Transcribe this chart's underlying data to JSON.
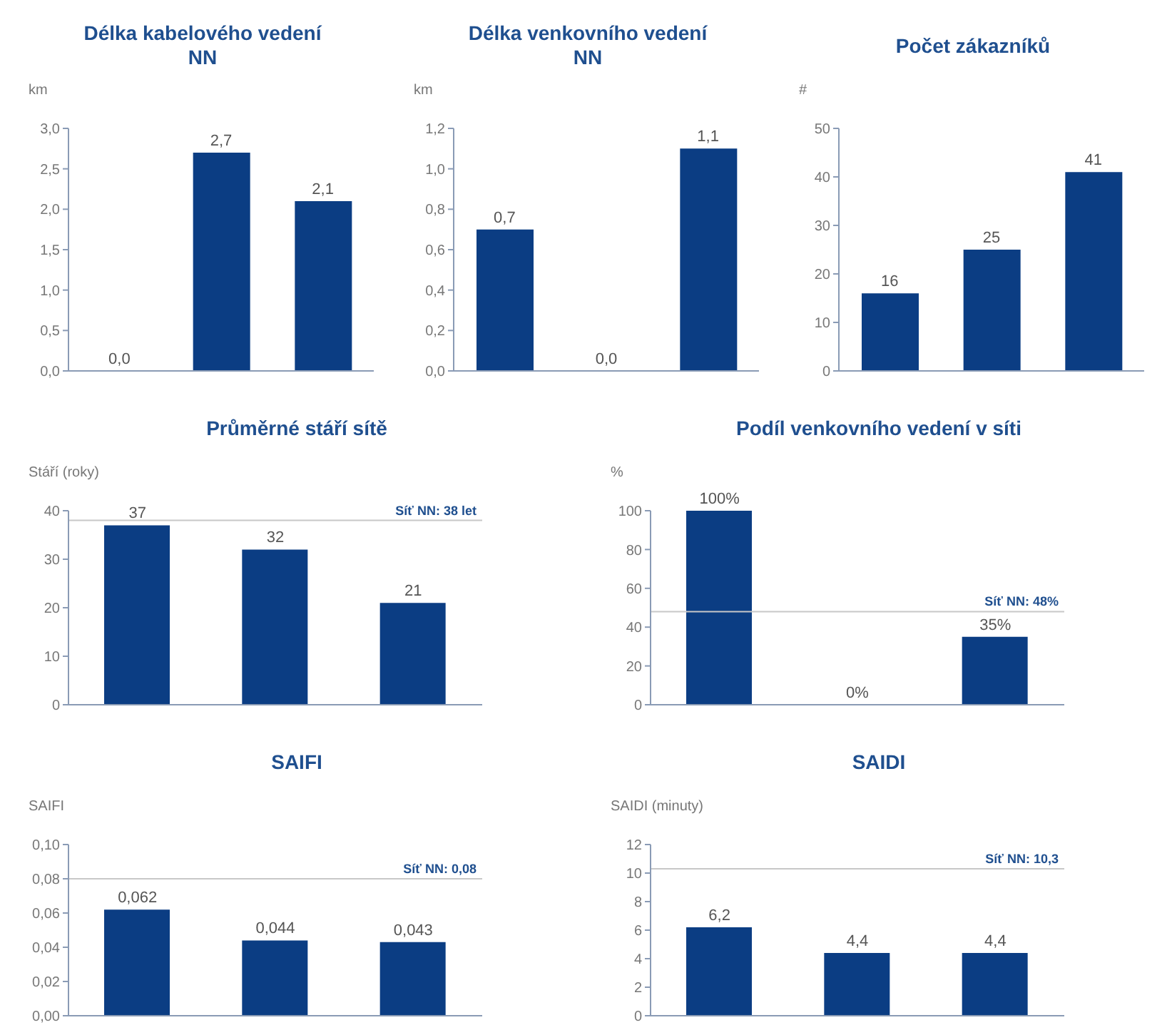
{
  "chart_data": [
    {
      "type": "bar",
      "title": "Délka kabelového vedení NN",
      "ylabel": "km",
      "categories": [
        null,
        null,
        null
      ],
      "values": [
        0.0,
        2.7,
        2.1
      ],
      "value_labels": [
        "0,0",
        "2,7",
        "2,1"
      ],
      "color": "#0b3d83",
      "ylim": [
        0,
        3
      ],
      "yticks": [
        {
          "value": 0,
          "label": "0,0"
        },
        {
          "value": 0.5,
          "label": "0,5"
        },
        {
          "value": 1,
          "label": "1,0"
        },
        {
          "value": 1.5,
          "label": "1,5"
        },
        {
          "value": 2,
          "label": "2,0"
        },
        {
          "value": 2.5,
          "label": "2,5"
        },
        {
          "value": 3,
          "label": "3,0"
        }
      ],
      "grid": false,
      "legend": false
    },
    {
      "type": "bar",
      "title": "Délka venkovního vedení NN",
      "ylabel": "km",
      "categories": [
        null,
        null,
        null
      ],
      "values": [
        0.7,
        0.0,
        1.1
      ],
      "value_labels": [
        "0,7",
        "0,0",
        "1,1"
      ],
      "color": "#0b3d83",
      "ylim": [
        0,
        1.2
      ],
      "yticks": [
        {
          "value": 0,
          "label": "0,0"
        },
        {
          "value": 0.2,
          "label": "0,2"
        },
        {
          "value": 0.4,
          "label": "0,4"
        },
        {
          "value": 0.6,
          "label": "0,6"
        },
        {
          "value": 0.8,
          "label": "0,8"
        },
        {
          "value": 1,
          "label": "1,0"
        },
        {
          "value": 1.2,
          "label": "1,2"
        }
      ],
      "grid": false,
      "legend": false
    },
    {
      "type": "bar",
      "title": "Počet zákazníků",
      "ylabel": "#",
      "categories": [
        null,
        null,
        null
      ],
      "values": [
        16,
        25,
        41
      ],
      "data_labels": true,
      "color": "#0b3d83",
      "ylim": [
        0,
        50
      ],
      "yticks": [
        0,
        10,
        20,
        30,
        40,
        50
      ],
      "grid": false,
      "legend": false
    },
    {
      "type": "bar",
      "title": "Průměrné stáří sítě",
      "ylabel": "Stáří (roky)",
      "categories": [
        null,
        null,
        null
      ],
      "values": [
        37,
        32,
        21
      ],
      "data_labels": true,
      "color": "#0b3d83",
      "ylim": [
        0,
        40
      ],
      "yticks": [
        0,
        10,
        20,
        30,
        40
      ],
      "grid": false,
      "legend": false,
      "ref_lines": [
        {
          "axis": "y",
          "value": 38,
          "label": "Síť NN: 38 let",
          "color": "#c8c8c8"
        }
      ]
    },
    {
      "type": "bar",
      "title": "Podíl venkovního vedení v síti",
      "ylabel": "%",
      "categories": [
        null,
        null,
        null
      ],
      "values": [
        100,
        0,
        35
      ],
      "value_labels": [
        "100%",
        "0%",
        "35%"
      ],
      "color": "#0b3d83",
      "ylim": [
        0,
        100
      ],
      "yticks": [
        0,
        20,
        40,
        60,
        80,
        100
      ],
      "grid": false,
      "legend": false,
      "ref_lines": [
        {
          "axis": "y",
          "value": 48,
          "label": "Síť NN: 48%",
          "color": "#c8c8c8"
        }
      ]
    },
    {
      "type": "bar",
      "title": "SAIFI",
      "ylabel": "SAIFI",
      "categories": [
        null,
        null,
        null
      ],
      "values": [
        0.062,
        0.044,
        0.043
      ],
      "value_labels": [
        "0,062",
        "0,044",
        "0,043"
      ],
      "color": "#0b3d83",
      "ylim": [
        0,
        0.1
      ],
      "yticks": [
        {
          "value": 0,
          "label": "0,00"
        },
        {
          "value": 0.02,
          "label": "0,02"
        },
        {
          "value": 0.04,
          "label": "0,04"
        },
        {
          "value": 0.06,
          "label": "0,06"
        },
        {
          "value": 0.08,
          "label": "0,08"
        },
        {
          "value": 0.1,
          "label": "0,10"
        }
      ],
      "grid": false,
      "legend": false,
      "ref_lines": [
        {
          "axis": "y",
          "value": 0.08,
          "label": "Síť NN: 0,08",
          "color": "#c8c8c8"
        }
      ]
    },
    {
      "type": "bar",
      "title": "SAIDI",
      "ylabel": "SAIDI (minuty)",
      "categories": [
        null,
        null,
        null
      ],
      "values": [
        6.2,
        4.4,
        4.4
      ],
      "value_labels": [
        "6,2",
        "4,4",
        "4,4"
      ],
      "color": "#0b3d83",
      "ylim": [
        0,
        12
      ],
      "yticks": [
        0,
        2,
        4,
        6,
        8,
        10,
        12
      ],
      "grid": false,
      "legend": false,
      "ref_lines": [
        {
          "axis": "y",
          "value": 10.3,
          "label": "Síť NN: 10,3",
          "color": "#c8c8c8"
        }
      ]
    }
  ]
}
